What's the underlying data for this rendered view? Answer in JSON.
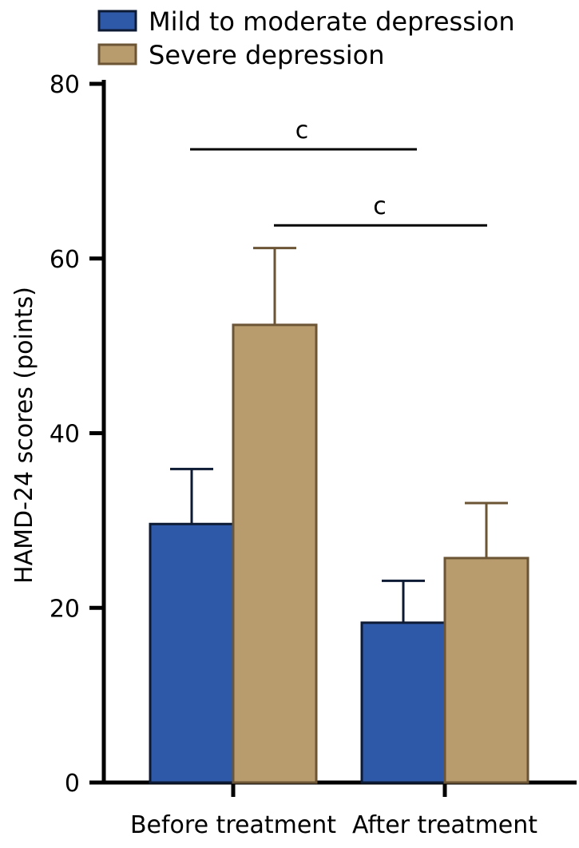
{
  "chart_data": {
    "type": "bar",
    "title": "",
    "xlabel": "",
    "ylabel": "HAMD-24 scores (points)",
    "ylim": [
      0,
      80
    ],
    "yticks": [
      0,
      20,
      40,
      60,
      80
    ],
    "categories": [
      "Before treatment",
      "After treatment"
    ],
    "series": [
      {
        "name": "Mild to moderate depression",
        "values": [
          29.6,
          18.3
        ],
        "errors": [
          6.3,
          4.8
        ],
        "color": "#2e59a8",
        "edge_color": "#0d1a33"
      },
      {
        "name": "Severe depression",
        "values": [
          52.4,
          25.7
        ],
        "errors": [
          8.8,
          6.3
        ],
        "color": "#b89c6e",
        "edge_color": "#6b5535"
      }
    ],
    "legend_position": "top-left",
    "grid": false,
    "significance": [
      {
        "label": "c",
        "between": "Mild to moderate depression, Before treatment vs After treatment",
        "level": 72.5
      },
      {
        "label": "c",
        "between": "Severe depression, Before treatment vs After treatment",
        "level": 63.8
      }
    ]
  }
}
